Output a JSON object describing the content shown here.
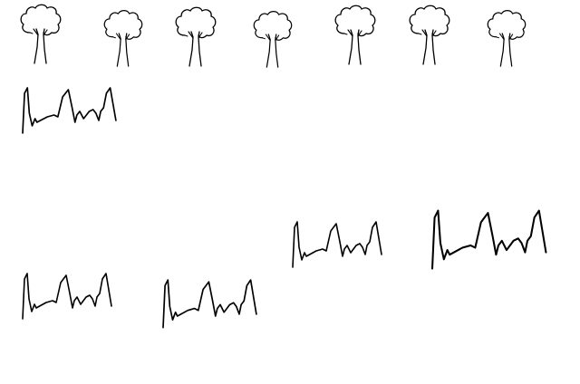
{
  "drawing": {
    "background_color": "#ffffff",
    "ink_color": "#000000",
    "tree_icon": "tree-icon",
    "grass_icon": "grass-tuft-icon",
    "tree_count": 7,
    "grass_tuft_count": 5
  }
}
